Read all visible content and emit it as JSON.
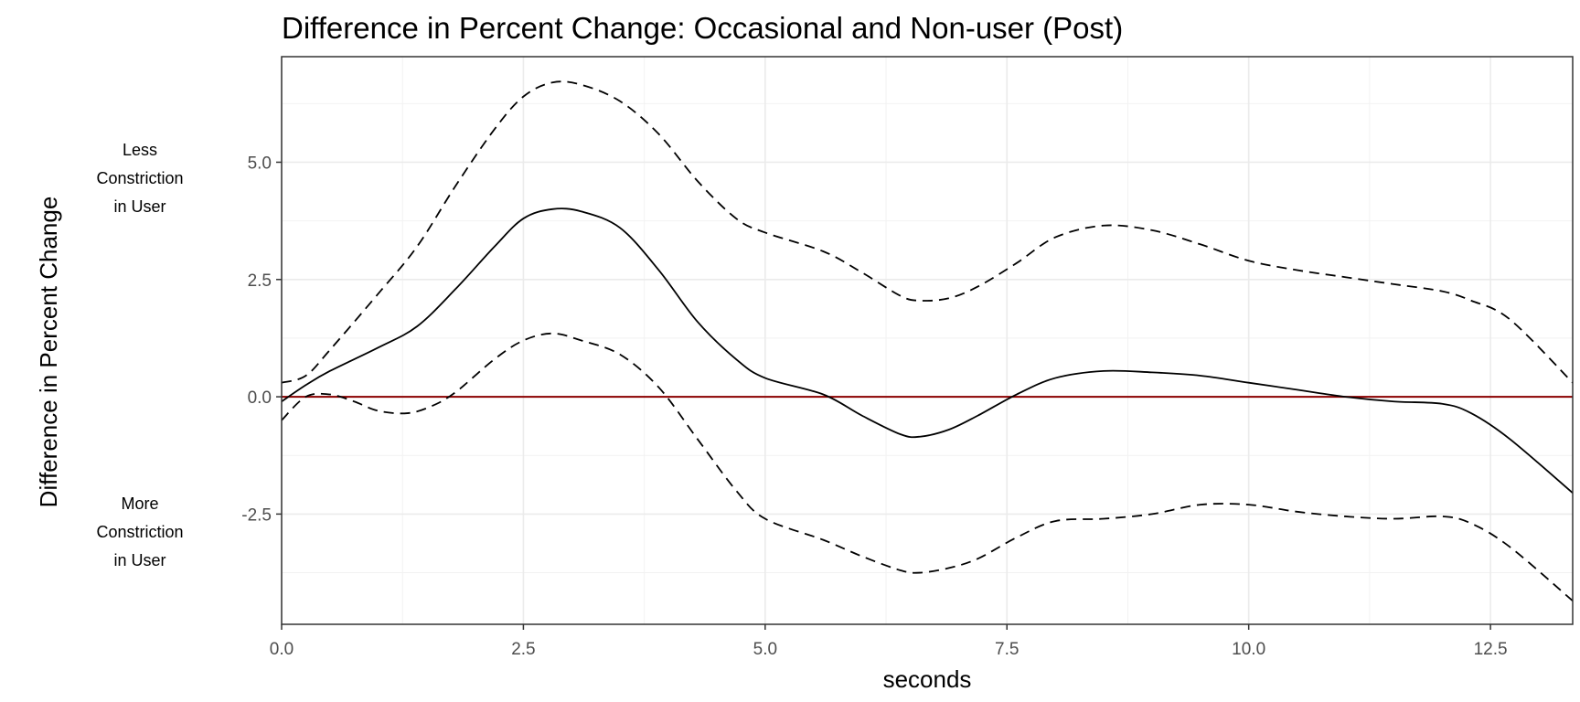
{
  "chart_data": {
    "type": "line",
    "title": "Difference in Percent Change: Occasional and Non-user (Post)",
    "xlabel": "seconds",
    "ylabel": "Difference in Percent Change",
    "xlim": [
      0,
      13.35
    ],
    "ylim": [
      -4.85,
      7.25
    ],
    "x_ticks": [
      0.0,
      2.5,
      5.0,
      7.5,
      10.0,
      12.5
    ],
    "x_tick_labels": [
      "0.0",
      "2.5",
      "5.0",
      "7.5",
      "10.0",
      "12.5"
    ],
    "y_ticks": [
      -2.5,
      0.0,
      2.5,
      5.0
    ],
    "y_tick_labels": [
      "-2.5",
      "0.0",
      "2.5",
      "5.0"
    ],
    "grid": true,
    "annotations": {
      "upper": [
        "Less",
        "Constriction",
        "in User"
      ],
      "lower": [
        "More",
        "Constriction",
        "in User"
      ]
    },
    "reference_line": {
      "y": 0,
      "color": "#8b0000"
    },
    "series": [
      {
        "role": "estimate",
        "style": "solid",
        "color": "#000000",
        "x": [
          0,
          0.25,
          0.5,
          1.0,
          1.4,
          1.8,
          2.2,
          2.5,
          2.8,
          3.1,
          3.5,
          3.9,
          4.3,
          4.7,
          5.0,
          5.6,
          6.0,
          6.4,
          6.6,
          6.9,
          7.2,
          7.6,
          8.0,
          8.5,
          9.0,
          9.5,
          10.0,
          10.5,
          11.0,
          11.5,
          12.0,
          12.3,
          12.7,
          13.35
        ],
        "y": [
          -0.1,
          0.25,
          0.55,
          1.05,
          1.5,
          2.3,
          3.2,
          3.8,
          4.0,
          3.95,
          3.6,
          2.7,
          1.6,
          0.8,
          0.4,
          0.05,
          -0.4,
          -0.8,
          -0.85,
          -0.7,
          -0.4,
          0.05,
          0.4,
          0.55,
          0.52,
          0.45,
          0.3,
          0.15,
          0.0,
          -0.1,
          -0.15,
          -0.35,
          -0.9,
          -2.05
        ]
      },
      {
        "role": "upper bound",
        "style": "dashed",
        "color": "#000000",
        "x": [
          0,
          0.25,
          0.5,
          1.0,
          1.4,
          1.8,
          2.2,
          2.5,
          2.8,
          3.1,
          3.5,
          3.9,
          4.3,
          4.7,
          5.0,
          5.6,
          6.0,
          6.4,
          6.6,
          6.9,
          7.2,
          7.6,
          8.0,
          8.5,
          9.0,
          9.5,
          10.0,
          10.5,
          11.0,
          11.5,
          12.0,
          12.3,
          12.7,
          13.35
        ],
        "y": [
          0.3,
          0.45,
          1.0,
          2.2,
          3.2,
          4.5,
          5.7,
          6.4,
          6.7,
          6.65,
          6.3,
          5.6,
          4.6,
          3.8,
          3.5,
          3.1,
          2.65,
          2.15,
          2.05,
          2.1,
          2.35,
          2.85,
          3.4,
          3.65,
          3.55,
          3.25,
          2.9,
          2.7,
          2.55,
          2.4,
          2.25,
          2.05,
          1.65,
          0.3
        ]
      },
      {
        "role": "lower bound",
        "style": "dashed",
        "color": "#000000",
        "x": [
          0,
          0.25,
          0.5,
          0.75,
          1.0,
          1.3,
          1.55,
          1.8,
          2.2,
          2.5,
          2.8,
          3.1,
          3.5,
          3.9,
          4.3,
          4.7,
          5.0,
          5.6,
          6.0,
          6.4,
          6.6,
          6.9,
          7.2,
          7.6,
          8.0,
          8.5,
          9.0,
          9.5,
          10.0,
          10.5,
          11.0,
          11.5,
          12.0,
          12.3,
          12.7,
          13.35
        ],
        "y": [
          -0.5,
          0.0,
          0.05,
          -0.1,
          -0.3,
          -0.35,
          -0.2,
          0.1,
          0.8,
          1.2,
          1.35,
          1.2,
          0.9,
          0.2,
          -0.9,
          -2.0,
          -2.6,
          -3.05,
          -3.4,
          -3.7,
          -3.75,
          -3.65,
          -3.45,
          -3.0,
          -2.65,
          -2.6,
          -2.5,
          -2.3,
          -2.3,
          -2.45,
          -2.55,
          -2.6,
          -2.55,
          -2.7,
          -3.2,
          -4.35
        ]
      }
    ]
  }
}
